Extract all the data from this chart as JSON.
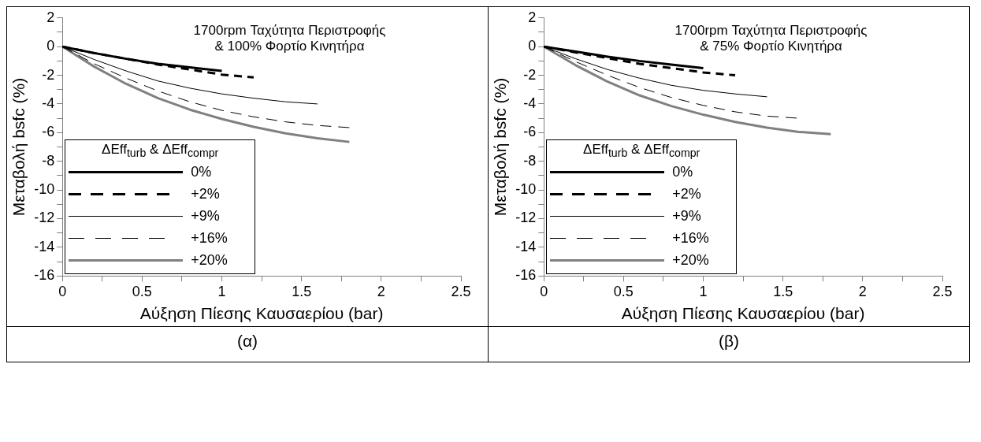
{
  "chart_data": [
    {
      "type": "line",
      "title": "1700rpm Ταχύτητα Περιστροφής",
      "subtitle": "& 100% Φορτίο Κινητήρα",
      "xlabel": "Αύξηση Πίεσης Καυσαερίου (bar)",
      "ylabel": "Μεταβολή bsfc (%)",
      "legend_title": "ΔEff$_{turb}$ & ΔEff$_{compr}$",
      "legend": "bottom left",
      "grid": false,
      "marker": "none",
      "annotations": [
        "(α)"
      ],
      "xlim": [
        0,
        2.5
      ],
      "xticks": [
        0,
        {
          "value": 0.25,
          "label": null
        },
        0.5,
        {
          "value": 0.75,
          "label": null
        },
        1,
        {
          "value": 1.25,
          "label": null
        },
        1.5,
        {
          "value": 1.75,
          "label": null
        },
        2,
        {
          "value": 2.25,
          "label": null
        },
        2.5
      ],
      "ylim": [
        -16,
        2
      ],
      "yticks": [
        -16,
        {
          "value": -15,
          "label": null
        },
        -14,
        {
          "value": -13,
          "label": null
        },
        -12,
        {
          "value": -11,
          "label": null
        },
        -10,
        {
          "value": -9,
          "label": null
        },
        -8,
        {
          "value": -7,
          "label": null
        },
        -6,
        {
          "value": -5,
          "label": null
        },
        -4,
        {
          "value": -3,
          "label": null
        },
        -2,
        {
          "value": -1,
          "label": null
        },
        0,
        {
          "value": 1,
          "label": null
        },
        2
      ],
      "series": [
        {
          "name": "0%",
          "color": "#000000",
          "line_style": "solid",
          "x": [
            0,
            0.2,
            0.4,
            0.6,
            0.8,
            1.0
          ],
          "values": [
            0,
            -0.45,
            -0.85,
            -1.2,
            -1.45,
            -1.7
          ]
        },
        {
          "name": "+2%",
          "color": "#000000",
          "line_style": "dashed",
          "x": [
            0,
            0.2,
            0.4,
            0.6,
            0.8,
            1.0,
            1.2
          ],
          "values": [
            0,
            -0.45,
            -0.85,
            -1.25,
            -1.6,
            -1.95,
            -2.15
          ]
        },
        {
          "name": "+9%",
          "color": "#000000",
          "line_style": "solid",
          "x": [
            0,
            0.2,
            0.4,
            0.6,
            0.8,
            1.0,
            1.2,
            1.4,
            1.6
          ],
          "values": [
            0,
            -0.9,
            -1.7,
            -2.4,
            -2.9,
            -3.3,
            -3.6,
            -3.85,
            -4.0
          ]
        },
        {
          "name": "+16%",
          "color": "#000000",
          "line_style": "dashed",
          "x": [
            0,
            0.2,
            0.4,
            0.6,
            0.8,
            1.0,
            1.2,
            1.4,
            1.6,
            1.8
          ],
          "values": [
            0,
            -1.2,
            -2.2,
            -3.1,
            -3.85,
            -4.45,
            -4.9,
            -5.25,
            -5.5,
            -5.65
          ]
        },
        {
          "name": "+20%",
          "color": "#808080",
          "line_style": "solid",
          "x": [
            0,
            0.2,
            0.4,
            0.6,
            0.8,
            1.0,
            1.2,
            1.4,
            1.6,
            1.8
          ],
          "values": [
            0,
            -1.4,
            -2.6,
            -3.6,
            -4.4,
            -5.05,
            -5.6,
            -6.05,
            -6.4,
            -6.65
          ]
        }
      ]
    },
    {
      "type": "line",
      "title": "1700rpm Ταχύτητα Περιστροφής",
      "subtitle": "& 75% Φορτίο Κινητήρα",
      "xlabel": "Αύξηση Πίεσης Καυσαερίου (bar)",
      "ylabel": "Μεταβολή bsfc (%)",
      "legend_title": "ΔEff$_{turb}$ & ΔEff$_{compr}$",
      "legend": "bottom left",
      "grid": false,
      "marker": "none",
      "annotations": [
        "(β)"
      ],
      "xlim": [
        0,
        2.5
      ],
      "xticks": [
        0,
        {
          "value": 0.25,
          "label": null
        },
        0.5,
        {
          "value": 0.75,
          "label": null
        },
        1,
        {
          "value": 1.25,
          "label": null
        },
        1.5,
        {
          "value": 1.75,
          "label": null
        },
        2,
        {
          "value": 2.25,
          "label": null
        },
        2.5
      ],
      "ylim": [
        -16,
        2
      ],
      "yticks": [
        -16,
        {
          "value": -15,
          "label": null
        },
        -14,
        {
          "value": -13,
          "label": null
        },
        -12,
        {
          "value": -11,
          "label": null
        },
        -10,
        {
          "value": -9,
          "label": null
        },
        -8,
        {
          "value": -7,
          "label": null
        },
        -6,
        {
          "value": -5,
          "label": null
        },
        -4,
        {
          "value": -3,
          "label": null
        },
        -2,
        {
          "value": -1,
          "label": null
        },
        0,
        {
          "value": 1,
          "label": null
        },
        2
      ],
      "series": [
        {
          "name": "0%",
          "color": "#000000",
          "line_style": "solid",
          "x": [
            0,
            0.2,
            0.4,
            0.6,
            0.8,
            1.0
          ],
          "values": [
            0,
            -0.35,
            -0.7,
            -1.0,
            -1.25,
            -1.5
          ]
        },
        {
          "name": "+2%",
          "color": "#000000",
          "line_style": "dashed",
          "x": [
            0,
            0.2,
            0.4,
            0.6,
            0.8,
            1.0,
            1.2
          ],
          "values": [
            0,
            -0.4,
            -0.8,
            -1.2,
            -1.5,
            -1.8,
            -2.0
          ]
        },
        {
          "name": "+9%",
          "color": "#000000",
          "line_style": "solid",
          "x": [
            0,
            0.2,
            0.4,
            0.6,
            0.8,
            1.0,
            1.2,
            1.4
          ],
          "values": [
            0,
            -0.85,
            -1.6,
            -2.2,
            -2.7,
            -3.05,
            -3.3,
            -3.5
          ]
        },
        {
          "name": "+16%",
          "color": "#000000",
          "line_style": "dashed",
          "x": [
            0,
            0.2,
            0.4,
            0.6,
            0.8,
            1.0,
            1.2,
            1.4,
            1.6
          ],
          "values": [
            0,
            -1.05,
            -2.0,
            -2.85,
            -3.55,
            -4.1,
            -4.55,
            -4.85,
            -5.0
          ]
        },
        {
          "name": "+20%",
          "color": "#808080",
          "line_style": "solid",
          "x": [
            0,
            0.2,
            0.4,
            0.6,
            0.8,
            1.0,
            1.2,
            1.4,
            1.6,
            1.8
          ],
          "values": [
            0,
            -1.3,
            -2.45,
            -3.4,
            -4.15,
            -4.75,
            -5.25,
            -5.65,
            -5.95,
            -6.1
          ]
        }
      ]
    }
  ]
}
